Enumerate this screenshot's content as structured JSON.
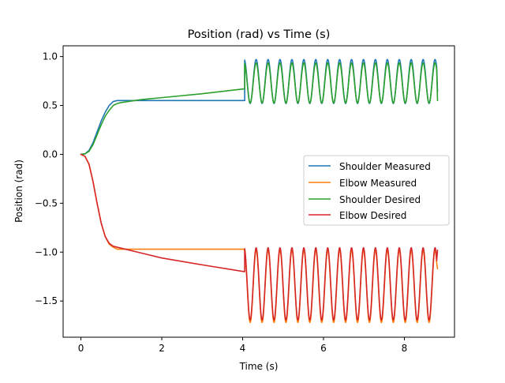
{
  "chart_data": {
    "type": "line",
    "title": "Position (rad) vs Time (s)",
    "xlabel": "Time (s)",
    "ylabel": "Position (rad)",
    "xlim": [
      -0.44,
      9.24
    ],
    "ylim": [
      -1.87,
      1.11
    ],
    "xticks": [
      0,
      2,
      4,
      6,
      8
    ],
    "xtick_labels": [
      "0",
      "2",
      "4",
      "6",
      "8"
    ],
    "yticks": [
      -1.5,
      -1.0,
      -0.5,
      0.0,
      0.5,
      1.0
    ],
    "ytick_labels": [
      "−1.5",
      "−1.0",
      "−0.5",
      "0.0",
      "0.5",
      "1.0"
    ],
    "grid": false,
    "legend_position": "center-right",
    "series": [
      {
        "name": "Shoulder Measured",
        "color": "#1f77b4",
        "x": [
          0,
          0.1,
          0.2,
          0.3,
          0.4,
          0.5,
          0.6,
          0.7,
          0.8,
          0.9,
          1.0,
          1.5,
          2.0,
          3.0,
          4.05
        ],
        "y": [
          0,
          0.005,
          0.04,
          0.12,
          0.23,
          0.34,
          0.43,
          0.5,
          0.54,
          0.55,
          0.55,
          0.55,
          0.55,
          0.55,
          0.55
        ],
        "osc": {
          "t0": 4.05,
          "t1": 8.82,
          "center": 0.745,
          "amp": 0.225,
          "period": 0.295,
          "last_y": 0.64
        }
      },
      {
        "name": "Elbow Measured",
        "color": "#ff7f0e",
        "x": [
          0,
          0.1,
          0.2,
          0.3,
          0.4,
          0.5,
          0.6,
          0.7,
          0.8,
          0.9,
          1.0,
          1.5,
          2.0,
          3.0,
          4.05
        ],
        "y": [
          0,
          -0.02,
          -0.1,
          -0.28,
          -0.5,
          -0.7,
          -0.84,
          -0.92,
          -0.95,
          -0.97,
          -0.97,
          -0.97,
          -0.97,
          -0.97,
          -0.97
        ],
        "osc": {
          "t0": 4.05,
          "t1": 8.82,
          "center": -1.35,
          "amp": 0.37,
          "period": 0.295,
          "last_y": -1.17
        }
      },
      {
        "name": "Shoulder Desired",
        "color": "#2ca02c",
        "x": [
          0,
          0.1,
          0.2,
          0.3,
          0.4,
          0.5,
          0.6,
          0.7,
          0.8,
          0.9,
          1.0,
          1.5,
          2.0,
          3.0,
          4.05
        ],
        "y": [
          0,
          0.005,
          0.03,
          0.1,
          0.2,
          0.3,
          0.39,
          0.45,
          0.5,
          0.52,
          0.53,
          0.56,
          0.58,
          0.62,
          0.67
        ],
        "osc": {
          "t0": 4.05,
          "t1": 8.82,
          "center": 0.73,
          "amp": 0.205,
          "period": 0.295,
          "last_y": 0.55
        }
      },
      {
        "name": "Elbow Desired",
        "color": "#d62728",
        "x": [
          0,
          0.1,
          0.2,
          0.3,
          0.4,
          0.5,
          0.6,
          0.7,
          0.8,
          0.9,
          1.0,
          1.5,
          2.0,
          3.0,
          4.05
        ],
        "y": [
          0,
          -0.02,
          -0.1,
          -0.28,
          -0.5,
          -0.7,
          -0.84,
          -0.91,
          -0.94,
          -0.95,
          -0.96,
          -1.01,
          -1.06,
          -1.13,
          -1.2
        ],
        "osc": {
          "t0": 4.05,
          "t1": 8.82,
          "center": -1.325,
          "amp": 0.37,
          "period": 0.295,
          "last_y": -0.98
        }
      }
    ]
  }
}
